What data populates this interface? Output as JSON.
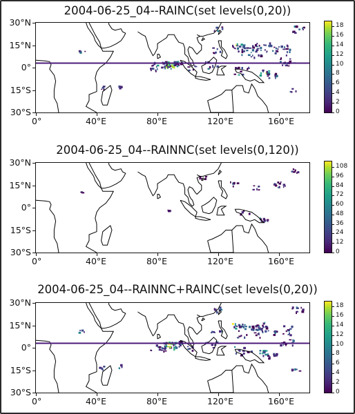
{
  "panels": [
    {
      "title": "2004-06-25_04--RAINC(set levels(0,20))",
      "colorbar_ticks": [
        "0",
        "2",
        "4",
        "6",
        "8",
        "10",
        "12",
        "14",
        "16",
        "18"
      ],
      "colorbar_max": 19,
      "line_at_lat": 3
    },
    {
      "title": "2004-06-25_04--RAINNC(set levels(0,120))",
      "colorbar_ticks": [
        "0",
        "12",
        "24",
        "36",
        "48",
        "60",
        "72",
        "84",
        "96",
        "108"
      ],
      "colorbar_max": 115,
      "line_at_lat": null
    },
    {
      "title": "2004-06-25_04--RAINNC+RAINC(set levels(0,20))",
      "colorbar_ticks": [
        "0",
        "2",
        "4",
        "6",
        "8",
        "10",
        "12",
        "14",
        "16",
        "18"
      ],
      "colorbar_max": 19,
      "line_at_lat": 3
    }
  ],
  "lat_labels": [
    "30°N",
    "15°N",
    "0°",
    "15°S",
    "30°S"
  ],
  "lon_labels": [
    "0°",
    "40°E",
    "80°E",
    "120°E",
    "160°E"
  ],
  "colors": {
    "line": "#4b1a7a",
    "coast": "#000000",
    "viridis_low": "#440154",
    "viridis_high": "#fde725"
  }
}
